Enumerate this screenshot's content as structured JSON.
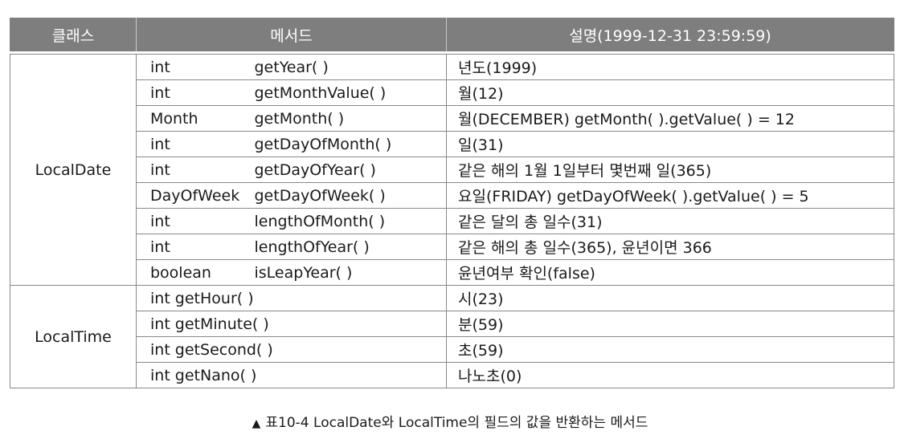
{
  "table": {
    "headers": [
      "클래스",
      "메서드",
      "설명(1999-12-31 23:59:59)"
    ],
    "groups": [
      {
        "class_name": "LocalDate",
        "rows": [
          {
            "type": "int",
            "method": "getYear( )",
            "desc": "년도(1999)"
          },
          {
            "type": "int",
            "method": "getMonthValue( )",
            "desc": "월(12)"
          },
          {
            "type": "Month",
            "method": "getMonth( )",
            "desc": "월(DECEMBER) getMonth( ).getValue( ) = 12"
          },
          {
            "type": "int",
            "method": "getDayOfMonth( )",
            "desc": "일(31)"
          },
          {
            "type": "int",
            "method": "getDayOfYear( )",
            "desc": "같은 해의 1월 1일부터 몇번째 일(365)"
          },
          {
            "type": "DayOfWeek",
            "method": "getDayOfWeek( )",
            "desc": "요일(FRIDAY) getDayOfWeek( ).getValue( ) = 5"
          },
          {
            "type": "int",
            "method": "lengthOfMonth( )",
            "desc": "같은 달의 총 일수(31)"
          },
          {
            "type": "int",
            "method": "lengthOfYear( )",
            "desc": "같은 해의 총 일수(365), 윤년이면 366"
          },
          {
            "type": "boolean",
            "method": "isLeapYear( )",
            "desc": "윤년여부 확인(false)"
          }
        ]
      },
      {
        "class_name": "LocalTime",
        "rows": [
          {
            "method": "int getHour( )",
            "desc": "시(23)"
          },
          {
            "method": "int getMinute( )",
            "desc": "분(59)"
          },
          {
            "method": "int getSecond( )",
            "desc": "초(59)"
          },
          {
            "method": "int getNano( )",
            "desc": "나노초(0)"
          }
        ]
      }
    ]
  },
  "caption": {
    "marker": "▲",
    "text": "표10-4  LocalDate와 LocalTime의 필드의 값을 반환하는 메서드"
  }
}
